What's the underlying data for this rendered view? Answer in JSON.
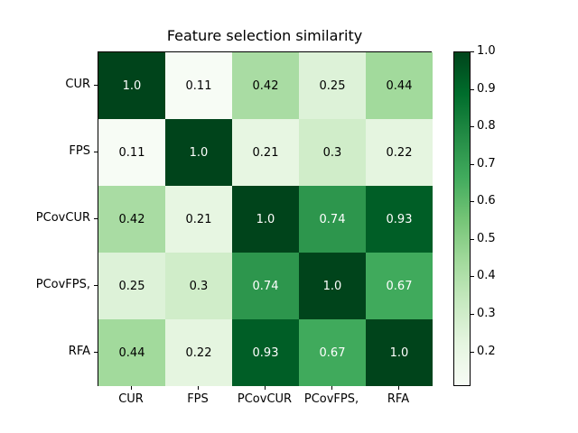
{
  "chart_data": {
    "type": "heatmap",
    "title": "Feature selection similarity",
    "categories": [
      "CUR",
      "FPS",
      "PCovCUR",
      "PCovFPS,",
      "RFA"
    ],
    "x_tick_labels": [
      "CUR",
      "FPS",
      "PCovCUR",
      "PCovFPS,",
      "RFA"
    ],
    "y_tick_labels": [
      "CUR",
      "FPS",
      "PCovCUR",
      "PCovFPS,",
      "RFA"
    ],
    "cell_labels": [
      [
        "1.0",
        "0.11",
        "0.42",
        "0.25",
        "0.44"
      ],
      [
        "0.11",
        "1.0",
        "0.21",
        "0.3",
        "0.22"
      ],
      [
        "0.42",
        "0.21",
        "1.0",
        "0.74",
        "0.93"
      ],
      [
        "0.25",
        "0.3",
        "0.74",
        "1.0",
        "0.67"
      ],
      [
        "0.44",
        "0.22",
        "0.93",
        "0.67",
        "1.0"
      ]
    ],
    "vmin": 0.11,
    "vmax": 1.0,
    "colormap": {
      "name": "Greens",
      "anchors": [
        "#f7fcf5",
        "#e5f5e0",
        "#c7e9c0",
        "#a1d99b",
        "#74c476",
        "#41ab5d",
        "#238b45",
        "#006d2c",
        "#00441b"
      ]
    },
    "colorbar": {
      "position": "right",
      "tick_labels": [
        "1.0",
        "0.9",
        "0.8",
        "0.7",
        "0.6",
        "0.5",
        "0.4",
        "0.3",
        "0.2"
      ]
    },
    "annotation_text_colors": {
      "on_dark": "#ffffff",
      "on_light": "#000000"
    },
    "frame_color": "#000000",
    "background_color": "#ffffff",
    "grid": false,
    "xlabel": "",
    "ylabel": ""
  }
}
